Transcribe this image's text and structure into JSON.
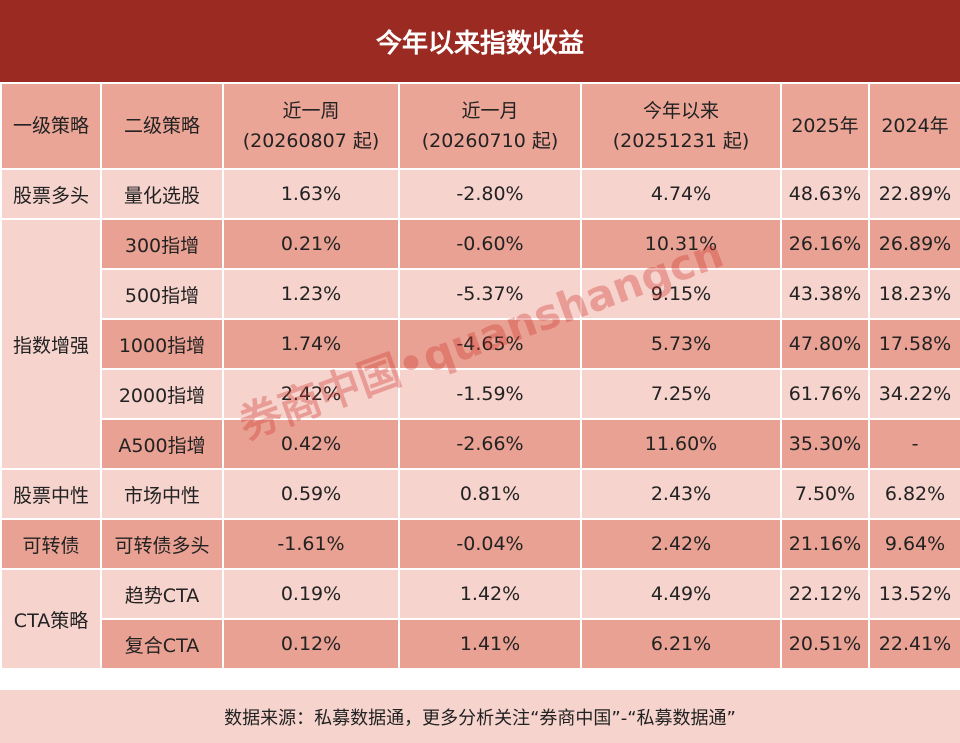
{
  "header": {
    "title": "今年以来指数收益"
  },
  "table": {
    "columns": [
      {
        "line1": "一级策略"
      },
      {
        "line1": "二级策略"
      },
      {
        "line1": "近一周",
        "line2": "(20260807 起)"
      },
      {
        "line1": "近一月",
        "line2": "(20260710 起)"
      },
      {
        "line1": "今年以来",
        "line2": "(20251231 起)"
      },
      {
        "line1": "2025年"
      },
      {
        "line1": "2024年"
      }
    ],
    "groups": [
      {
        "name": "股票多头",
        "rows": [
          [
            "量化选股",
            "1.63%",
            "-2.80%",
            "4.74%",
            "48.63%",
            "22.89%"
          ]
        ]
      },
      {
        "name": "指数增强",
        "rows": [
          [
            "300指增",
            "0.21%",
            "-0.60%",
            "10.31%",
            "26.16%",
            "26.89%"
          ],
          [
            "500指增",
            "1.23%",
            "-5.37%",
            "9.15%",
            "43.38%",
            "18.23%"
          ],
          [
            "1000指增",
            "1.74%",
            "-4.65%",
            "5.73%",
            "47.80%",
            "17.58%"
          ],
          [
            "2000指增",
            "2.42%",
            "-1.59%",
            "7.25%",
            "61.76%",
            "34.22%"
          ],
          [
            "A500指增",
            "0.42%",
            "-2.66%",
            "11.60%",
            "35.30%",
            "-"
          ]
        ]
      },
      {
        "name": "股票中性",
        "rows": [
          [
            "市场中性",
            "0.59%",
            "0.81%",
            "2.43%",
            "7.50%",
            "6.82%"
          ]
        ]
      },
      {
        "name": "可转债",
        "rows": [
          [
            "可转债多头",
            "-1.61%",
            "-0.04%",
            "2.42%",
            "21.16%",
            "9.64%"
          ]
        ]
      },
      {
        "name": "CTA策略",
        "rows": [
          [
            "趋势CTA",
            "0.19%",
            "1.42%",
            "4.49%",
            "22.12%",
            "13.52%"
          ],
          [
            "复合CTA",
            "0.12%",
            "1.41%",
            "6.21%",
            "20.51%",
            "22.41%"
          ]
        ]
      }
    ]
  },
  "footer": {
    "source": "数据来源：私募数据通，更多分析关注“券商中国”-“私募数据通”"
  },
  "watermark": "券商中国•quanshangcn"
}
